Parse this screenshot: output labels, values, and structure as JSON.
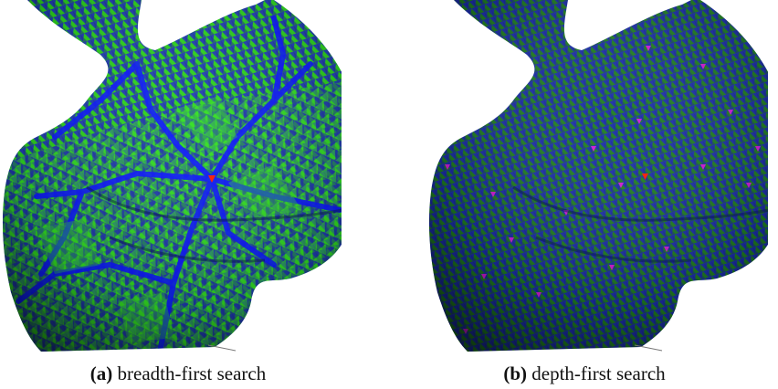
{
  "figure": {
    "panels": [
      {
        "label": "(a)",
        "caption": "breadth-first search",
        "palette": {
          "base": "#1f3fb0",
          "triangles": "#2bd21b",
          "seams": "#0a14ff",
          "seed": "#ff1a00"
        }
      },
      {
        "label": "(b)",
        "caption": "depth-first search",
        "palette": {
          "base": "#1b2fa8",
          "triangles": "#1f7e1f",
          "seams": "#0b0bd8",
          "defects": "#d21bd6"
        }
      }
    ]
  }
}
